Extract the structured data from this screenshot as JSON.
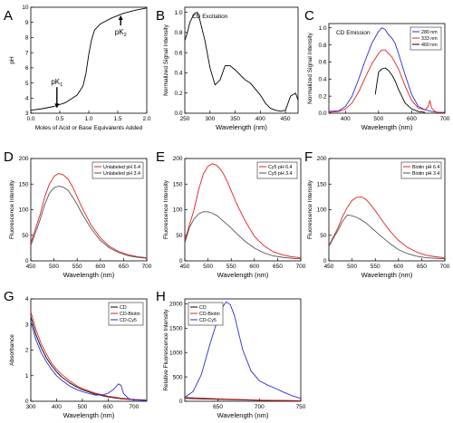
{
  "chart_data": [
    {
      "panel": "A",
      "type": "line",
      "xlabel": "Moles of Acid or Base Equivalents Added",
      "ylabel": "pH",
      "xlim": [
        0,
        2.0
      ],
      "ylim": [
        3,
        10
      ],
      "xticks": [
        "0.0",
        "0.5",
        "1.0",
        "1.5",
        "2.0"
      ],
      "yticks": [
        "3",
        "4",
        "5",
        "6",
        "7",
        "8",
        "9",
        "10"
      ],
      "series": [
        {
          "color": "#000000",
          "x": [
            0,
            0.2,
            0.4,
            0.6,
            0.8,
            0.9,
            0.95,
            1.0,
            1.05,
            1.1,
            1.2,
            1.4,
            1.6,
            1.8,
            2.0
          ],
          "y": [
            3.2,
            3.3,
            3.45,
            3.7,
            4.2,
            4.8,
            5.6,
            6.9,
            7.9,
            8.5,
            8.9,
            9.3,
            9.6,
            9.8,
            9.95
          ]
        }
      ],
      "annotations": [
        {
          "text": "pK",
          "sub": "1",
          "at": [
            0.45,
            4.9
          ],
          "arrow_to": [
            0.45,
            3.4
          ]
        },
        {
          "text": "pK",
          "sub": "2",
          "at": [
            1.55,
            8.2
          ],
          "arrow_to": [
            1.55,
            9.4
          ]
        }
      ]
    },
    {
      "panel": "B",
      "type": "line",
      "title": "CD Excitation",
      "xlabel": "Wavelength (nm)",
      "ylabel": "Normalized Signal Intensity",
      "xlim": [
        250,
        475
      ],
      "ylim": [
        0,
        1.05
      ],
      "xticks": [
        "250",
        "300",
        "350",
        "400",
        "450"
      ],
      "yticks": [
        "0.0",
        "0.2",
        "0.4",
        "0.6",
        "0.8",
        "1.0"
      ],
      "series": [
        {
          "color": "#000000",
          "x": [
            250,
            255,
            260,
            265,
            270,
            275,
            280,
            290,
            300,
            310,
            320,
            330,
            340,
            350,
            360,
            370,
            380,
            390,
            400,
            410,
            420,
            430,
            440,
            450,
            460,
            470,
            475
          ],
          "y": [
            0.72,
            0.8,
            0.9,
            0.95,
            0.99,
            1.0,
            0.92,
            0.72,
            0.45,
            0.28,
            0.33,
            0.47,
            0.47,
            0.43,
            0.38,
            0.33,
            0.3,
            0.24,
            0.18,
            0.1,
            0.05,
            0.03,
            0.02,
            0.03,
            0.17,
            0.2,
            0.13
          ]
        }
      ]
    },
    {
      "panel": "C",
      "type": "line",
      "title": "CD Emission",
      "xlabel": "Wavelength (nm)",
      "ylabel": "Normalized Signal Intensity",
      "xlim": [
        350,
        700
      ],
      "ylim": [
        0,
        1.05
      ],
      "xticks": [
        "400",
        "500",
        "600",
        "700"
      ],
      "yticks": [
        "0.0",
        "0.2",
        "0.4",
        "0.6",
        "0.8",
        "1.0"
      ],
      "legend": "top-right",
      "series": [
        {
          "name": "280 nm",
          "color": "#2b2bd6",
          "x": [
            350,
            380,
            400,
            420,
            440,
            460,
            480,
            500,
            510,
            520,
            530,
            540,
            550,
            560,
            580,
            600,
            620,
            640,
            660,
            680,
            700
          ],
          "y": [
            0.02,
            0.03,
            0.08,
            0.2,
            0.4,
            0.62,
            0.82,
            0.96,
            1.0,
            0.98,
            0.92,
            0.88,
            0.82,
            0.7,
            0.45,
            0.22,
            0.08,
            0.04,
            0.02,
            0.01,
            0.01
          ]
        },
        {
          "name": "333 nm",
          "color": "#e02020",
          "x": [
            350,
            380,
            400,
            420,
            440,
            460,
            480,
            500,
            510,
            520,
            540,
            560,
            580,
            600,
            620,
            640,
            650,
            655,
            660,
            670,
            680,
            700
          ],
          "y": [
            0.01,
            0.02,
            0.05,
            0.12,
            0.25,
            0.42,
            0.58,
            0.7,
            0.74,
            0.74,
            0.66,
            0.52,
            0.32,
            0.15,
            0.06,
            0.04,
            0.08,
            0.15,
            0.06,
            0.02,
            0.01,
            0.01
          ]
        },
        {
          "name": "460 nm",
          "color": "#000000",
          "x": [
            490,
            495,
            500,
            510,
            520,
            530,
            540,
            550,
            560,
            580,
            600,
            620,
            640
          ],
          "y": [
            0.22,
            0.35,
            0.48,
            0.52,
            0.53,
            0.5,
            0.45,
            0.38,
            0.28,
            0.12,
            0.05,
            0.02,
            0.01
          ]
        }
      ]
    },
    {
      "panel": "D",
      "type": "line",
      "xlabel": "Wavelength (nm)",
      "ylabel": "Fluorescence Intensity",
      "xlim": [
        450,
        700
      ],
      "ylim": [
        0,
        200
      ],
      "xticks": [
        "450",
        "500",
        "550",
        "600",
        "650",
        "700"
      ],
      "yticks": [
        "0",
        "50",
        "100",
        "150",
        "200"
      ],
      "legend": "top-right",
      "series": [
        {
          "name": "Unlabeled pH 6.4",
          "color": "#e02020",
          "x": [
            450,
            470,
            480,
            490,
            500,
            510,
            520,
            530,
            540,
            550,
            560,
            580,
            600,
            620,
            640,
            660,
            680,
            700
          ],
          "y": [
            35,
            90,
            125,
            150,
            165,
            171,
            168,
            160,
            145,
            125,
            105,
            70,
            45,
            28,
            18,
            12,
            8,
            6
          ]
        },
        {
          "name": "Unlabeled pH 3.4",
          "color": "#555555",
          "x": [
            450,
            470,
            480,
            490,
            500,
            510,
            520,
            530,
            540,
            550,
            560,
            580,
            600,
            620,
            640,
            660,
            680,
            700
          ],
          "y": [
            30,
            80,
            110,
            132,
            143,
            146,
            144,
            138,
            125,
            110,
            93,
            63,
            40,
            25,
            16,
            10,
            7,
            5
          ]
        }
      ]
    },
    {
      "panel": "E",
      "type": "line",
      "xlabel": "Wavelength (nm)",
      "ylabel": "Fluorescence Intensity",
      "xlim": [
        450,
        700
      ],
      "ylim": [
        0,
        200
      ],
      "xticks": [
        "450",
        "500",
        "550",
        "600",
        "650",
        "700"
      ],
      "yticks": [
        "0",
        "50",
        "100",
        "150",
        "200"
      ],
      "legend": "top-right",
      "series": [
        {
          "name": "Cy5 pH 6.4",
          "color": "#e02020",
          "x": [
            450,
            470,
            480,
            490,
            500,
            510,
            520,
            530,
            540,
            550,
            560,
            580,
            600,
            620,
            640,
            660,
            680,
            700
          ],
          "y": [
            40,
            100,
            140,
            170,
            185,
            190,
            186,
            175,
            158,
            137,
            115,
            78,
            48,
            30,
            18,
            12,
            8,
            6
          ]
        },
        {
          "name": "Cy5 pH 3.4",
          "color": "#555555",
          "x": [
            450,
            460,
            470,
            480,
            490,
            500,
            510,
            520,
            530,
            540,
            550,
            560,
            580,
            600,
            620,
            640,
            660,
            680,
            700
          ],
          "y": [
            35,
            65,
            82,
            92,
            96,
            96,
            93,
            88,
            80,
            72,
            64,
            55,
            38,
            25,
            16,
            10,
            7,
            5,
            4
          ]
        }
      ]
    },
    {
      "panel": "F",
      "type": "line",
      "xlabel": "Wavelength (nm)",
      "ylabel": "Fluorescence Intensity",
      "xlim": [
        450,
        700
      ],
      "ylim": [
        0,
        200
      ],
      "xticks": [
        "450",
        "500",
        "550",
        "600",
        "650",
        "700"
      ],
      "yticks": [
        "0",
        "50",
        "100",
        "150",
        "200"
      ],
      "legend": "top-right",
      "series": [
        {
          "name": "Biotin pH 6.4",
          "color": "#e02020",
          "x": [
            450,
            470,
            480,
            490,
            500,
            510,
            520,
            530,
            540,
            550,
            560,
            580,
            600,
            620,
            640,
            660,
            680,
            700
          ],
          "y": [
            30,
            65,
            88,
            105,
            118,
            124,
            125,
            120,
            110,
            98,
            85,
            60,
            40,
            26,
            17,
            11,
            8,
            6
          ]
        },
        {
          "name": "Biotin pH 3.4",
          "color": "#555555",
          "x": [
            450,
            460,
            470,
            480,
            490,
            500,
            510,
            520,
            530,
            540,
            550,
            560,
            580,
            600,
            620,
            640,
            660,
            680,
            700
          ],
          "y": [
            28,
            45,
            60,
            78,
            90,
            88,
            85,
            80,
            74,
            66,
            58,
            50,
            35,
            22,
            14,
            9,
            6,
            5,
            4
          ]
        }
      ]
    },
    {
      "panel": "G",
      "type": "line",
      "xlabel": "Wavelength (nm)",
      "ylabel": "Absorbance",
      "xlim": [
        300,
        750
      ],
      "ylim": [
        0,
        4
      ],
      "xticks": [
        "300",
        "400",
        "500",
        "600",
        "700"
      ],
      "yticks": [
        "0",
        "1",
        "2",
        "3",
        "4"
      ],
      "legend": "top-right",
      "series": [
        {
          "name": "CD",
          "color": "#000000",
          "x": [
            300,
            320,
            340,
            360,
            380,
            400,
            420,
            450,
            480,
            500,
            550,
            600,
            650,
            700,
            750
          ],
          "y": [
            3.3,
            2.6,
            2.1,
            1.7,
            1.4,
            1.15,
            0.95,
            0.72,
            0.55,
            0.45,
            0.28,
            0.17,
            0.1,
            0.06,
            0.04
          ]
        },
        {
          "name": "CD-Biotin",
          "color": "#e02020",
          "x": [
            300,
            320,
            340,
            360,
            380,
            400,
            420,
            450,
            480,
            500,
            550,
            600,
            650,
            700,
            750
          ],
          "y": [
            3.5,
            2.8,
            2.25,
            1.85,
            1.5,
            1.25,
            1.05,
            0.8,
            0.6,
            0.5,
            0.32,
            0.2,
            0.12,
            0.07,
            0.05
          ]
        },
        {
          "name": "CD-Cy5",
          "color": "#2b2bd6",
          "x": [
            300,
            320,
            340,
            360,
            380,
            400,
            420,
            450,
            480,
            500,
            550,
            580,
            600,
            620,
            640,
            650,
            660,
            680,
            700,
            750
          ],
          "y": [
            3.1,
            2.4,
            1.9,
            1.55,
            1.25,
            1.0,
            0.82,
            0.6,
            0.45,
            0.37,
            0.24,
            0.25,
            0.32,
            0.45,
            0.68,
            0.62,
            0.3,
            0.1,
            0.05,
            0.03
          ]
        }
      ]
    },
    {
      "panel": "H",
      "type": "line",
      "xlabel": "Wavelength (nm)",
      "ylabel": "Relative Fluorescence Intensity",
      "xlim": [
        610,
        750
      ],
      "ylim": [
        0,
        2100
      ],
      "xticks": [
        "650",
        "700",
        "750"
      ],
      "yticks": [
        "0",
        "500",
        "1000",
        "1500",
        "2000"
      ],
      "legend": "top-left",
      "series": [
        {
          "name": "CD",
          "color": "#000000",
          "x": [
            610,
            650,
            700,
            750
          ],
          "y": [
            60,
            40,
            20,
            10
          ]
        },
        {
          "name": "CD-Biotin",
          "color": "#e02020",
          "x": [
            610,
            650,
            700,
            750
          ],
          "y": [
            80,
            50,
            25,
            12
          ]
        },
        {
          "name": "CD-Cy5",
          "color": "#2b2bd6",
          "x": [
            610,
            620,
            630,
            640,
            650,
            655,
            660,
            665,
            670,
            675,
            680,
            690,
            700,
            710,
            720,
            730,
            740,
            750
          ],
          "y": [
            80,
            200,
            550,
            1150,
            1700,
            1920,
            2040,
            1980,
            1750,
            1400,
            1050,
            620,
            420,
            330,
            260,
            180,
            110,
            60
          ]
        }
      ]
    }
  ]
}
